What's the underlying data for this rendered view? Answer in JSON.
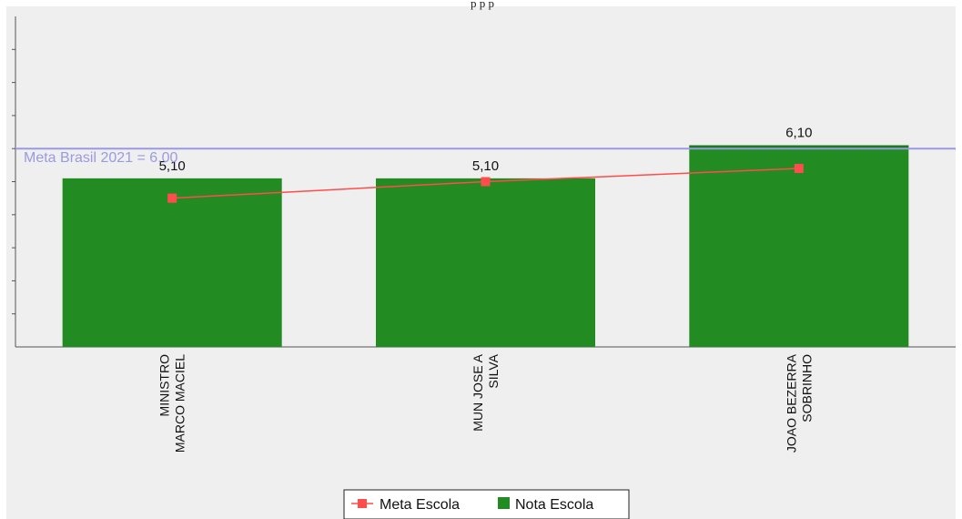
{
  "top_caption": "p              p              p",
  "colors": {
    "plot_background": "#efefef",
    "bar_fill": "#228b22",
    "bar_highlight_fill": "#1e7a1e",
    "reference_line": "#9a9ae0",
    "series_line": "#ff4c4c",
    "axis": "#555555",
    "text": "#111111"
  },
  "chart_data": {
    "type": "bar",
    "categories": [
      [
        "MINISTRO",
        "MARCO MACIEL"
      ],
      [
        "MUN JOSE A",
        "SILVA"
      ],
      [
        "JOAO BEZERRA",
        "SOBRINHO"
      ]
    ],
    "series": [
      {
        "name": "Nota Escola",
        "type": "bar",
        "values": [
          5.1,
          5.1,
          6.1
        ],
        "value_labels": [
          "5,10",
          "5,10",
          "6,10"
        ]
      },
      {
        "name": "Meta Escola",
        "type": "line",
        "values": [
          4.5,
          5.0,
          5.4
        ]
      }
    ],
    "reference_line": {
      "label": "Meta Brasil 2021 = 6,00",
      "value": 6.0
    },
    "ylim": [
      0,
      10
    ],
    "legend_position": "bottom-center",
    "grid": false,
    "xlabel": "",
    "ylabel": "",
    "title": ""
  }
}
